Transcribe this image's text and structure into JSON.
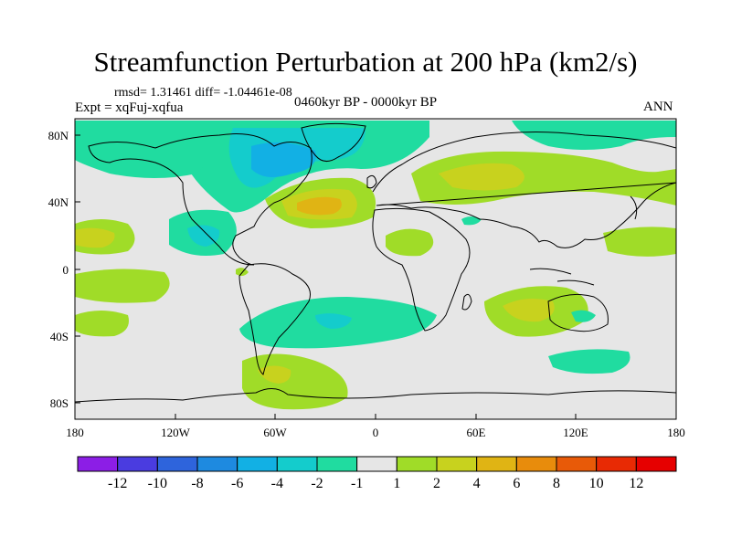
{
  "title": "Streamfunction Perturbation at 200 hPa (km2/s)",
  "stats": "rmsd= 1.31461 diff= -1.04461e-08",
  "experiment": "Expt = xqFuj-xqfua",
  "period": "0460kyr BP - 0000kyr BP",
  "season": "ANN",
  "x_ticks": [
    "180",
    "120W",
    "60W",
    "0",
    "60E",
    "120E",
    "180"
  ],
  "y_ticks": [
    "80N",
    "40N",
    "0",
    "40S",
    "80S"
  ],
  "colorbar": {
    "labels": [
      "-12",
      "-10",
      "-8",
      "-6",
      "-4",
      "-2",
      "-1",
      "1",
      "2",
      "4",
      "6",
      "8",
      "10",
      "12"
    ],
    "colors": [
      "#8c1ee6",
      "#4a3ce0",
      "#2e64dc",
      "#1e8ae0",
      "#12b0e4",
      "#14cccc",
      "#20dca0",
      "#e6e6e6",
      "#a0dc28",
      "#c8d21e",
      "#e0b414",
      "#e88c0c",
      "#e85a08",
      "#e82a04",
      "#e60000"
    ]
  },
  "colors": {
    "ocean_background": "#e6e6e6",
    "coastline": "#000000"
  }
}
